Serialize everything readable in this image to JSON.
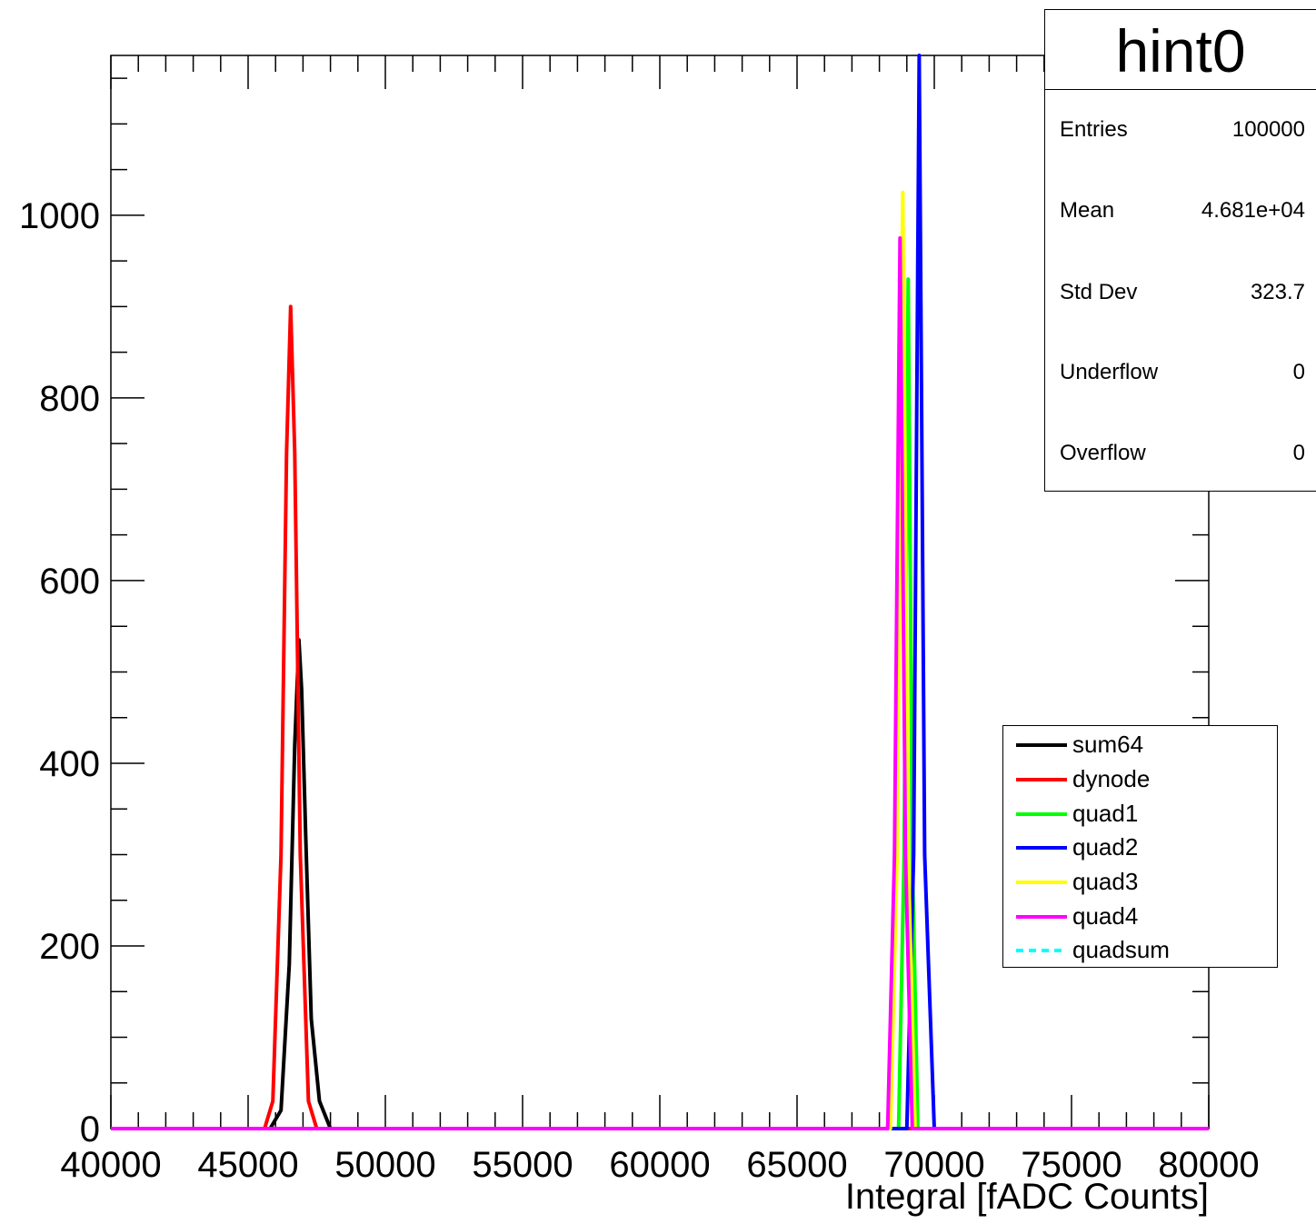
{
  "chart_data": {
    "type": "line",
    "xlabel": "Integral [fADC Counts]",
    "ylabel": "",
    "xlim": [
      40000,
      80000
    ],
    "ylim": [
      0,
      1175
    ],
    "x_ticks": [
      "40000",
      "45000",
      "50000",
      "55000",
      "60000",
      "65000",
      "70000",
      "75000",
      "80000"
    ],
    "y_ticks": [
      "0",
      "200",
      "400",
      "600",
      "800",
      "1000"
    ],
    "series": [
      {
        "name": "sum64",
        "color": "#000000",
        "dashed": false,
        "points": [
          [
            40000,
            0
          ],
          [
            45800,
            0
          ],
          [
            46200,
            20
          ],
          [
            46500,
            180
          ],
          [
            46700,
            420
          ],
          [
            46850,
            535
          ],
          [
            46950,
            480
          ],
          [
            47100,
            320
          ],
          [
            47300,
            120
          ],
          [
            47600,
            30
          ],
          [
            48000,
            0
          ],
          [
            80000,
            0
          ]
        ]
      },
      {
        "name": "dynode",
        "color": "#ff0000",
        "dashed": false,
        "points": [
          [
            40000,
            0
          ],
          [
            45600,
            0
          ],
          [
            45900,
            30
          ],
          [
            46200,
            300
          ],
          [
            46400,
            740
          ],
          [
            46550,
            900
          ],
          [
            46700,
            740
          ],
          [
            46900,
            300
          ],
          [
            47200,
            30
          ],
          [
            47500,
            0
          ],
          [
            80000,
            0
          ]
        ]
      },
      {
        "name": "quad1",
        "color": "#00ff00",
        "dashed": false,
        "points": [
          [
            40000,
            0
          ],
          [
            68700,
            0
          ],
          [
            68900,
            300
          ],
          [
            69050,
            930
          ],
          [
            69200,
            300
          ],
          [
            69400,
            0
          ],
          [
            80000,
            0
          ]
        ]
      },
      {
        "name": "quad2",
        "color": "#0000ff",
        "dashed": false,
        "points": [
          [
            40000,
            0
          ],
          [
            69000,
            0
          ],
          [
            69250,
            300
          ],
          [
            69450,
            1175
          ],
          [
            69650,
            300
          ],
          [
            70000,
            0
          ],
          [
            80000,
            0
          ]
        ]
      },
      {
        "name": "quad3",
        "color": "#ffff00",
        "dashed": false,
        "points": [
          [
            40000,
            0
          ],
          [
            68400,
            0
          ],
          [
            68650,
            300
          ],
          [
            68850,
            1025
          ],
          [
            69050,
            300
          ],
          [
            69300,
            0
          ],
          [
            80000,
            0
          ]
        ]
      },
      {
        "name": "quad4",
        "color": "#ff00ff",
        "dashed": false,
        "points": [
          [
            40000,
            0
          ],
          [
            68300,
            0
          ],
          [
            68550,
            300
          ],
          [
            68750,
            975
          ],
          [
            68950,
            300
          ],
          [
            69200,
            0
          ],
          [
            80000,
            0
          ]
        ]
      },
      {
        "name": "quadsum",
        "color": "#00ffff",
        "dashed": true,
        "points": []
      }
    ]
  },
  "stats": {
    "title": "hint0",
    "rows": [
      {
        "label": "Entries",
        "value": "100000"
      },
      {
        "label": "Mean",
        "value": "4.681e+04"
      },
      {
        "label": "Std Dev",
        "value": "323.7"
      },
      {
        "label": "Underflow",
        "value": "0"
      },
      {
        "label": "Overflow",
        "value": "0"
      }
    ]
  },
  "legend": {
    "items": [
      "sum64",
      "dynode",
      "quad1",
      "quad2",
      "quad3",
      "quad4",
      "quadsum"
    ]
  }
}
